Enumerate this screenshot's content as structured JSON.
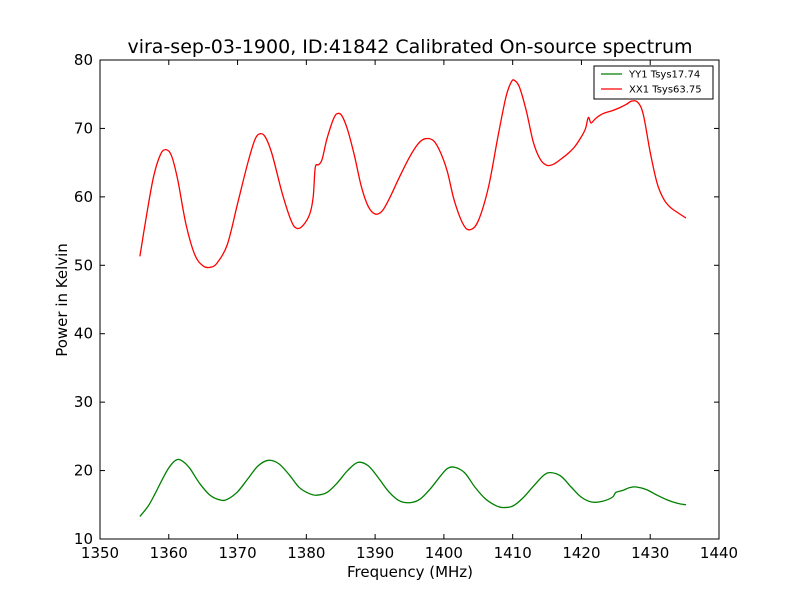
{
  "chart_data": {
    "type": "line",
    "title": "vira-sep-03-1900, ID:41842 Calibrated On-source spectrum",
    "xlabel": "Frequency (MHz)",
    "ylabel": "Power in Kelvin",
    "xlim": [
      1350,
      1440
    ],
    "ylim": [
      10,
      80
    ],
    "xticks": [
      "1350",
      "1360",
      "1370",
      "1380",
      "1390",
      "1400",
      "1410",
      "1420",
      "1430",
      "1440"
    ],
    "yticks": [
      "10",
      "20",
      "30",
      "40",
      "50",
      "60",
      "70",
      "80"
    ],
    "grid": false,
    "legend_position": "top-right",
    "series": [
      {
        "name": "YY1 Tsys17.74",
        "color": "#008000",
        "x": [
          1355.8,
          1357.0,
          1358.0,
          1359.0,
          1360.0,
          1361.0,
          1361.8,
          1363.0,
          1364.5,
          1366.0,
          1367.5,
          1368.5,
          1370.0,
          1371.5,
          1373.0,
          1374.5,
          1376.0,
          1377.5,
          1379.0,
          1380.5,
          1381.5,
          1383.0,
          1384.5,
          1386.0,
          1387.5,
          1389.0,
          1390.5,
          1392.0,
          1393.5,
          1395.0,
          1396.5,
          1398.0,
          1399.5,
          1400.5,
          1401.5,
          1403.0,
          1404.5,
          1406.0,
          1407.5,
          1408.5,
          1410.0,
          1411.5,
          1413.0,
          1414.5,
          1415.5,
          1417.0,
          1418.5,
          1420.0,
          1421.5,
          1423.0,
          1424.5,
          1425.0,
          1426.0,
          1427.0,
          1428.0,
          1429.5,
          1431.0,
          1432.5,
          1434.0,
          1435.2
        ],
        "values": [
          13.3,
          14.8,
          16.6,
          18.6,
          20.4,
          21.5,
          21.5,
          20.4,
          18.1,
          16.4,
          15.7,
          15.8,
          16.9,
          18.8,
          20.7,
          21.5,
          21.0,
          19.4,
          17.5,
          16.6,
          16.4,
          16.8,
          18.2,
          20.0,
          21.2,
          20.7,
          18.9,
          16.9,
          15.6,
          15.3,
          15.8,
          17.3,
          19.2,
          20.3,
          20.5,
          19.7,
          17.6,
          15.9,
          14.9,
          14.6,
          14.8,
          16.0,
          17.7,
          19.3,
          19.7,
          19.2,
          17.6,
          16.1,
          15.4,
          15.5,
          16.1,
          16.8,
          17.1,
          17.5,
          17.6,
          17.2,
          16.4,
          15.7,
          15.2,
          15.0
        ]
      },
      {
        "name": "XX1 Tsys63.75",
        "color": "#ff0000",
        "x": [
          1355.8,
          1356.8,
          1357.8,
          1358.8,
          1359.6,
          1360.4,
          1361.3,
          1362.5,
          1363.8,
          1365.0,
          1366.0,
          1367.0,
          1368.5,
          1370.0,
          1371.5,
          1372.5,
          1373.2,
          1374.0,
          1375.0,
          1376.5,
          1377.8,
          1378.6,
          1379.5,
          1380.5,
          1381.0,
          1381.3,
          1381.8,
          1382.3,
          1383.0,
          1384.0,
          1384.6,
          1385.2,
          1386.0,
          1387.0,
          1388.0,
          1389.0,
          1390.0,
          1391.0,
          1392.0,
          1393.5,
          1395.0,
          1396.3,
          1397.3,
          1398.5,
          1399.5,
          1400.5,
          1401.5,
          1402.8,
          1403.8,
          1405.0,
          1406.5,
          1407.8,
          1409.0,
          1409.8,
          1410.3,
          1411.0,
          1412.0,
          1413.0,
          1414.0,
          1415.0,
          1416.0,
          1417.0,
          1418.0,
          1419.0,
          1420.0,
          1420.6,
          1421.0,
          1421.4,
          1422.0,
          1423.0,
          1424.5,
          1425.5,
          1426.5,
          1427.3,
          1428.2,
          1429.0,
          1430.0,
          1431.0,
          1432.0,
          1433.0,
          1434.0,
          1435.2
        ],
        "values": [
          51.3,
          57.5,
          63.0,
          66.2,
          66.9,
          66.0,
          62.5,
          56.0,
          51.5,
          49.9,
          49.7,
          50.3,
          53.0,
          59.0,
          65.0,
          68.3,
          69.2,
          68.8,
          66.3,
          60.5,
          56.5,
          55.4,
          55.8,
          57.5,
          60.0,
          64.3,
          64.7,
          65.5,
          68.5,
          71.5,
          72.2,
          71.8,
          69.8,
          66.0,
          61.5,
          58.6,
          57.5,
          57.9,
          59.6,
          62.8,
          65.8,
          67.8,
          68.5,
          68.2,
          66.5,
          63.7,
          59.5,
          56.0,
          55.2,
          56.5,
          61.5,
          68.5,
          74.5,
          76.8,
          77.0,
          76.0,
          72.5,
          68.0,
          65.5,
          64.6,
          64.8,
          65.5,
          66.3,
          67.3,
          68.8,
          70.0,
          71.6,
          70.8,
          71.4,
          72.1,
          72.6,
          73.0,
          73.5,
          74.0,
          73.8,
          72.0,
          66.5,
          62.0,
          59.6,
          58.4,
          57.7,
          56.9
        ]
      }
    ]
  }
}
